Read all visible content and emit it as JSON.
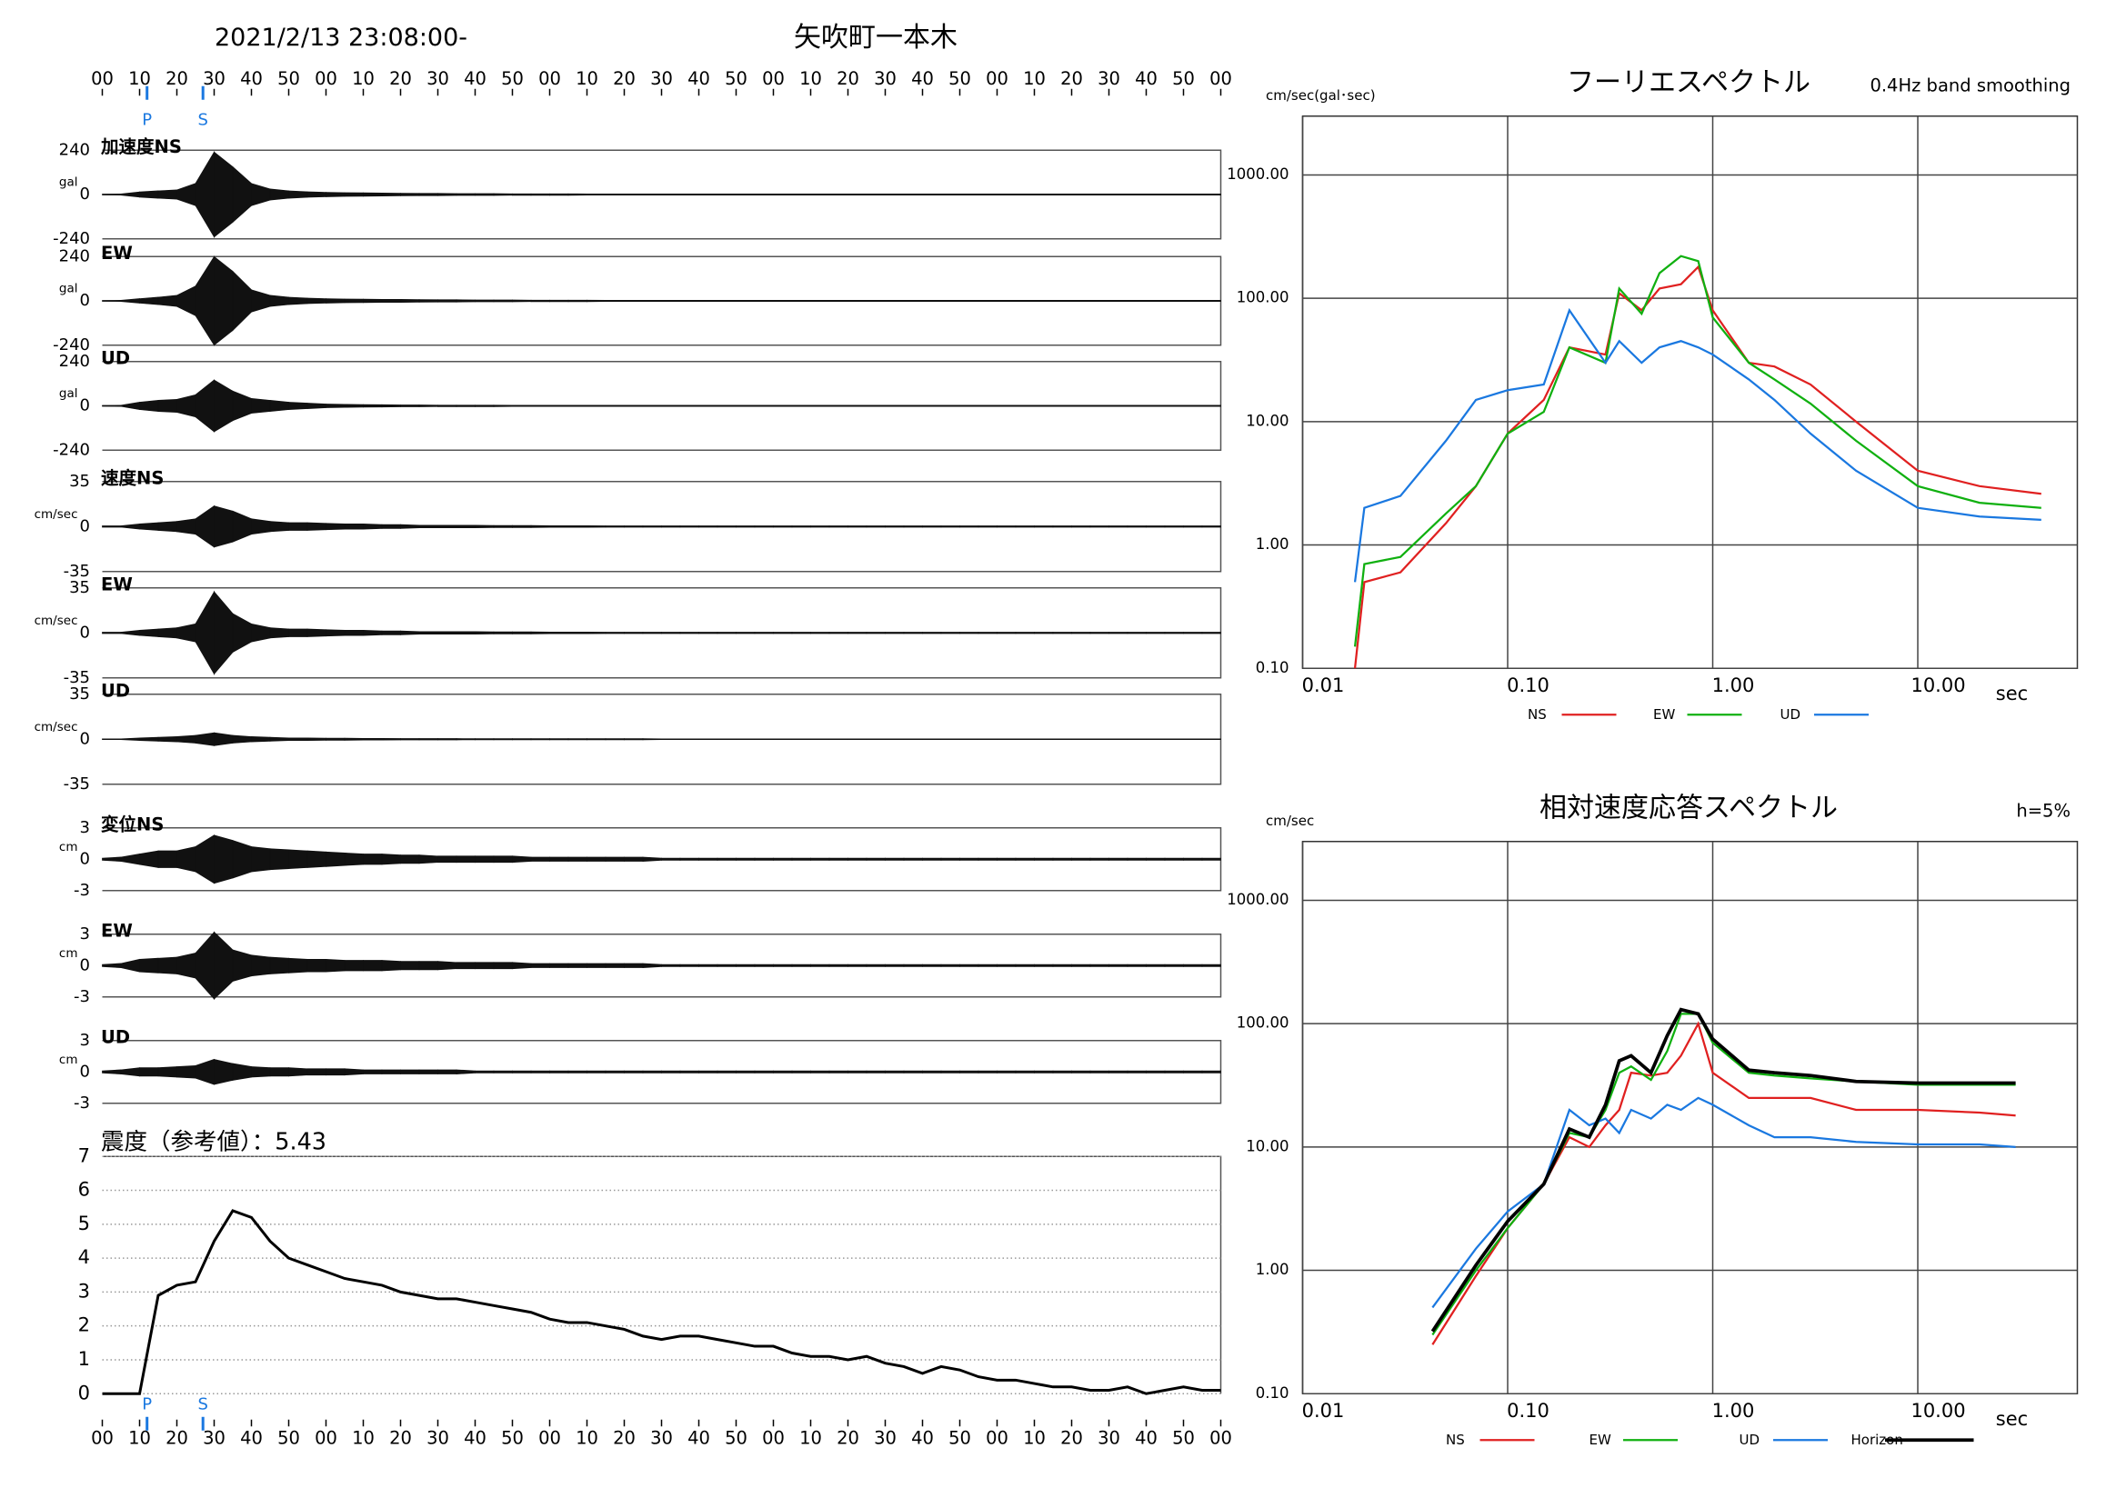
{
  "header": {
    "datetime": "2021/2/13 23:08:00-",
    "station": "矢吹町一本木"
  },
  "waveforms": {
    "xlim": [
      0,
      300
    ],
    "xticks": [
      {
        "value": 0,
        "label": "00"
      },
      {
        "value": 10,
        "label": "10"
      },
      {
        "value": 20,
        "label": "20"
      },
      {
        "value": 30,
        "label": "30"
      },
      {
        "value": 40,
        "label": "40"
      },
      {
        "value": 50,
        "label": "50"
      },
      {
        "value": 60,
        "label": "00"
      },
      {
        "value": 70,
        "label": "10"
      },
      {
        "value": 80,
        "label": "20"
      },
      {
        "value": 90,
        "label": "30"
      },
      {
        "value": 100,
        "label": "40"
      },
      {
        "value": 110,
        "label": "50"
      },
      {
        "value": 120,
        "label": "00"
      },
      {
        "value": 130,
        "label": "10"
      },
      {
        "value": 140,
        "label": "20"
      },
      {
        "value": 150,
        "label": "30"
      },
      {
        "value": 160,
        "label": "40"
      },
      {
        "value": 170,
        "label": "50"
      },
      {
        "value": 180,
        "label": "00"
      },
      {
        "value": 190,
        "label": "10"
      },
      {
        "value": 200,
        "label": "20"
      },
      {
        "value": 210,
        "label": "30"
      },
      {
        "value": 220,
        "label": "40"
      },
      {
        "value": 230,
        "label": "50"
      },
      {
        "value": 240,
        "label": "00"
      },
      {
        "value": 250,
        "label": "10"
      },
      {
        "value": 260,
        "label": "20"
      },
      {
        "value": 270,
        "label": "30"
      },
      {
        "value": 280,
        "label": "40"
      },
      {
        "value": 290,
        "label": "50"
      },
      {
        "value": 300,
        "label": "00"
      }
    ],
    "phases": [
      {
        "label": "P",
        "value": 12
      },
      {
        "label": "S",
        "value": 27
      }
    ],
    "x": [
      0,
      5,
      10,
      15,
      20,
      25,
      30,
      35,
      40,
      45,
      50,
      55,
      60,
      65,
      70,
      75,
      80,
      85,
      90,
      95,
      100,
      105,
      110,
      115,
      120,
      125,
      130,
      135,
      140,
      145,
      150,
      155,
      160,
      165,
      170,
      175,
      180,
      185,
      190,
      195,
      200,
      205,
      210,
      215,
      220,
      225,
      230,
      235,
      240,
      245,
      250,
      255,
      260,
      265,
      270,
      275,
      280,
      285,
      290,
      295,
      300
    ],
    "panels": [
      {
        "label": "加速度NS",
        "unit": "gal",
        "ylim": [
          -240,
          240
        ],
        "yticks": [
          240,
          0,
          -240
        ],
        "values": [
          2,
          3,
          14,
          20,
          25,
          60,
          230,
          150,
          60,
          30,
          20,
          15,
          12,
          10,
          9,
          8,
          7,
          6,
          6,
          5,
          5,
          5,
          4,
          4,
          4,
          4,
          3,
          3,
          3,
          3,
          3,
          3,
          3,
          3,
          3,
          3,
          3,
          3,
          3,
          3,
          3,
          3,
          3,
          3,
          3,
          3,
          3,
          3,
          3,
          3,
          3,
          3,
          3,
          3,
          3,
          3,
          3,
          3,
          3,
          3,
          3
        ]
      },
      {
        "label": "EW",
        "unit": "gal",
        "ylim": [
          -240,
          240
        ],
        "yticks": [
          240,
          0,
          -240
        ],
        "values": [
          2,
          3,
          12,
          20,
          30,
          80,
          240,
          160,
          60,
          30,
          20,
          15,
          12,
          10,
          9,
          8,
          8,
          7,
          6,
          6,
          5,
          5,
          5,
          4,
          4,
          4,
          4,
          3,
          3,
          3,
          3,
          3,
          3,
          3,
          3,
          3,
          3,
          3,
          3,
          3,
          3,
          3,
          3,
          3,
          3,
          3,
          3,
          3,
          3,
          3,
          3,
          3,
          3,
          3,
          3,
          3,
          3,
          3,
          3,
          3,
          3
        ]
      },
      {
        "label": "UD",
        "unit": "gal",
        "ylim": [
          -240,
          240
        ],
        "yticks": [
          240,
          0,
          -240
        ],
        "values": [
          2,
          3,
          20,
          30,
          35,
          60,
          140,
          80,
          40,
          30,
          20,
          15,
          10,
          8,
          7,
          6,
          5,
          5,
          4,
          4,
          4,
          4,
          3,
          3,
          3,
          3,
          3,
          3,
          3,
          3,
          3,
          3,
          3,
          3,
          3,
          3,
          3,
          3,
          3,
          3,
          3,
          3,
          3,
          3,
          3,
          3,
          3,
          3,
          3,
          3,
          3,
          3,
          3,
          3,
          3,
          3,
          3,
          3,
          3,
          3,
          3
        ]
      },
      {
        "label": "速度NS",
        "unit": "cm/sec",
        "ylim": [
          -35,
          35
        ],
        "yticks": [
          35,
          0,
          -35
        ],
        "values": [
          0.5,
          0.5,
          2,
          3,
          4,
          6,
          16,
          12,
          6,
          4,
          3,
          3,
          2.5,
          2,
          2,
          1.5,
          1.5,
          1,
          1,
          1,
          1,
          0.8,
          0.8,
          0.8,
          0.6,
          0.6,
          0.6,
          0.5,
          0.5,
          0.5,
          0.5,
          0.5,
          0.5,
          0.5,
          0.5,
          0.5,
          0.5,
          0.5,
          0.5,
          0.5,
          0.5,
          0.5,
          0.5,
          0.5,
          0.5,
          0.5,
          0.5,
          0.5,
          0.5,
          0.5,
          0.5,
          0.5,
          0.5,
          0.5,
          0.5,
          0.5,
          0.5,
          0.5,
          0.5,
          0.5,
          0.5
        ]
      },
      {
        "label": "EW",
        "unit": "cm/sec",
        "ylim": [
          -35,
          35
        ],
        "yticks": [
          35,
          0,
          -35
        ],
        "values": [
          0.5,
          0.5,
          2,
          3,
          4,
          7,
          32,
          15,
          7,
          4,
          3,
          3,
          2.5,
          2,
          2,
          1.5,
          1.5,
          1,
          1,
          1,
          1,
          0.8,
          0.8,
          0.8,
          0.6,
          0.6,
          0.6,
          0.5,
          0.5,
          0.5,
          0.5,
          0.5,
          0.5,
          0.5,
          0.5,
          0.5,
          0.5,
          0.5,
          0.5,
          0.5,
          0.5,
          0.5,
          0.5,
          0.5,
          0.5,
          0.5,
          0.5,
          0.5,
          0.5,
          0.5,
          0.5,
          0.5,
          0.5,
          0.5,
          0.5,
          0.5,
          0.5,
          0.5,
          0.5,
          0.5,
          0.5
        ]
      },
      {
        "label": "UD",
        "unit": "cm/sec",
        "ylim": [
          -35,
          35
        ],
        "yticks": [
          35,
          0,
          -35
        ],
        "values": [
          0.3,
          0.3,
          1,
          1.5,
          2,
          3,
          5,
          3,
          2,
          1.5,
          1,
          1,
          0.8,
          0.8,
          0.6,
          0.6,
          0.5,
          0.5,
          0.5,
          0.5,
          0.4,
          0.4,
          0.4,
          0.4,
          0.4,
          0.4,
          0.4,
          0.4,
          0.4,
          0.4,
          0.3,
          0.3,
          0.3,
          0.3,
          0.3,
          0.3,
          0.3,
          0.3,
          0.3,
          0.3,
          0.3,
          0.3,
          0.3,
          0.3,
          0.3,
          0.3,
          0.3,
          0.3,
          0.3,
          0.3,
          0.3,
          0.3,
          0.3,
          0.3,
          0.3,
          0.3,
          0.3,
          0.3,
          0.3,
          0.3,
          0.3
        ]
      },
      {
        "label": "変位NS",
        "unit": "cm",
        "ylim": [
          -3,
          3
        ],
        "yticks": [
          3,
          0,
          -3
        ],
        "values": [
          0.1,
          0.2,
          0.5,
          0.8,
          0.8,
          1.2,
          2.3,
          1.8,
          1.2,
          1.0,
          0.9,
          0.8,
          0.7,
          0.6,
          0.5,
          0.5,
          0.4,
          0.4,
          0.3,
          0.3,
          0.3,
          0.3,
          0.3,
          0.2,
          0.2,
          0.2,
          0.2,
          0.2,
          0.2,
          0.2,
          0.1,
          0.1,
          0.1,
          0.1,
          0.1,
          0.1,
          0.1,
          0.1,
          0.1,
          0.1,
          0.1,
          0.1,
          0.1,
          0.1,
          0.1,
          0.1,
          0.1,
          0.1,
          0.1,
          0.1,
          0.1,
          0.1,
          0.1,
          0.1,
          0.1,
          0.1,
          0.1,
          0.1,
          0.1,
          0.1,
          0.1
        ]
      },
      {
        "label": "EW",
        "unit": "cm",
        "ylim": [
          -3,
          3
        ],
        "yticks": [
          3,
          0,
          -3
        ],
        "values": [
          0.1,
          0.2,
          0.6,
          0.7,
          0.8,
          1.2,
          3.2,
          1.5,
          1.0,
          0.8,
          0.7,
          0.6,
          0.6,
          0.5,
          0.5,
          0.5,
          0.4,
          0.4,
          0.4,
          0.3,
          0.3,
          0.3,
          0.3,
          0.2,
          0.2,
          0.2,
          0.2,
          0.2,
          0.2,
          0.2,
          0.1,
          0.1,
          0.1,
          0.1,
          0.1,
          0.1,
          0.1,
          0.1,
          0.1,
          0.1,
          0.1,
          0.1,
          0.1,
          0.1,
          0.1,
          0.1,
          0.1,
          0.1,
          0.1,
          0.1,
          0.1,
          0.1,
          0.1,
          0.1,
          0.1,
          0.1,
          0.1,
          0.1,
          0.1,
          0.1,
          0.1
        ]
      },
      {
        "label": "UD",
        "unit": "cm",
        "ylim": [
          -3,
          3
        ],
        "yticks": [
          3,
          0,
          -3
        ],
        "values": [
          0.1,
          0.2,
          0.4,
          0.4,
          0.5,
          0.6,
          1.2,
          0.8,
          0.5,
          0.4,
          0.4,
          0.3,
          0.3,
          0.3,
          0.2,
          0.2,
          0.2,
          0.2,
          0.2,
          0.2,
          0.1,
          0.1,
          0.1,
          0.1,
          0.1,
          0.1,
          0.1,
          0.1,
          0.1,
          0.1,
          0.1,
          0.1,
          0.1,
          0.1,
          0.1,
          0.1,
          0.1,
          0.1,
          0.1,
          0.1,
          0.1,
          0.1,
          0.1,
          0.1,
          0.1,
          0.1,
          0.1,
          0.1,
          0.1,
          0.1,
          0.1,
          0.1,
          0.1,
          0.1,
          0.1,
          0.1,
          0.1,
          0.1,
          0.1,
          0.1,
          0.1
        ]
      }
    ]
  },
  "intensity": {
    "title": "震度（参考値）：5.43",
    "ylim": [
      0,
      7
    ],
    "yticks": [
      0,
      1,
      2,
      3,
      4,
      5,
      6,
      7
    ],
    "values": [
      0,
      0,
      0,
      2.9,
      3.2,
      3.3,
      4.5,
      5.4,
      5.2,
      4.5,
      4.0,
      3.8,
      3.6,
      3.4,
      3.3,
      3.2,
      3.0,
      2.9,
      2.8,
      2.8,
      2.7,
      2.6,
      2.5,
      2.4,
      2.2,
      2.1,
      2.1,
      2.0,
      1.9,
      1.7,
      1.6,
      1.7,
      1.7,
      1.6,
      1.5,
      1.4,
      1.4,
      1.2,
      1.1,
      1.1,
      1.0,
      1.1,
      0.9,
      0.8,
      0.6,
      0.8,
      0.7,
      0.5,
      0.4,
      0.4,
      0.3,
      0.2,
      0.2,
      0.1,
      0.1,
      0.2,
      0.0,
      0.1,
      0.2,
      0.1,
      0.1
    ]
  },
  "chart_data": [
    {
      "type": "line",
      "title": "フーリエスペクトル",
      "subtitle": "0.4Hz band smoothing",
      "y_label": "cm/sec(gal･sec)",
      "x_label": "sec",
      "log_x": true,
      "log_y": true,
      "grid": true,
      "xlim": [
        0.01,
        60
      ],
      "ylim": [
        0.1,
        3000
      ],
      "xticks": [
        {
          "value": 0.01,
          "label": "0.01"
        },
        {
          "value": 0.1,
          "label": "0.10"
        },
        {
          "value": 1,
          "label": "1.00"
        },
        {
          "value": 10,
          "label": "10.00"
        }
      ],
      "yticks": [
        {
          "value": 0.1,
          "label": "0.10"
        },
        {
          "value": 1,
          "label": "1.00"
        },
        {
          "value": 10,
          "label": "10.00"
        },
        {
          "value": 100,
          "label": "100.00"
        },
        {
          "value": 1000,
          "label": "1000.00"
        }
      ],
      "x": [
        0.018,
        0.02,
        0.03,
        0.05,
        0.07,
        0.1,
        0.15,
        0.2,
        0.3,
        0.35,
        0.45,
        0.55,
        0.7,
        0.85,
        1.0,
        1.5,
        2,
        3,
        5,
        10,
        20,
        40
      ],
      "series": [
        {
          "name": "NS",
          "color": "#e02020",
          "values": [
            0.1,
            0.5,
            0.6,
            1.5,
            3,
            8,
            15,
            40,
            35,
            110,
            80,
            120,
            130,
            180,
            80,
            30,
            28,
            20,
            10,
            4,
            3,
            2.6
          ]
        },
        {
          "name": "EW",
          "color": "#10b010",
          "values": [
            0.15,
            0.7,
            0.8,
            1.8,
            3,
            8,
            12,
            40,
            30,
            120,
            75,
            160,
            220,
            200,
            70,
            30,
            22,
            14,
            7,
            3,
            2.2,
            2
          ]
        },
        {
          "name": "UD",
          "color": "#1a78e0",
          "values": [
            0.5,
            2,
            2.5,
            7,
            15,
            18,
            20,
            80,
            30,
            45,
            30,
            40,
            45,
            40,
            35,
            22,
            15,
            8,
            4,
            2,
            1.7,
            1.6
          ]
        }
      ]
    },
    {
      "type": "line",
      "title": "相対速度応答スペクトル",
      "subtitle": "h=5%",
      "y_label": "cm/sec",
      "x_label": "sec",
      "log_x": true,
      "log_y": true,
      "grid": true,
      "xlim": [
        0.01,
        60
      ],
      "ylim": [
        0.1,
        3000
      ],
      "xticks": [
        {
          "value": 0.01,
          "label": "0.01"
        },
        {
          "value": 0.1,
          "label": "0.10"
        },
        {
          "value": 1,
          "label": "1.00"
        },
        {
          "value": 10,
          "label": "10.00"
        }
      ],
      "yticks": [
        {
          "value": 0.1,
          "label": "0.10"
        },
        {
          "value": 1,
          "label": "1.00"
        },
        {
          "value": 10,
          "label": "10.00"
        },
        {
          "value": 100,
          "label": "100.00"
        },
        {
          "value": 1000,
          "label": "1000.00"
        }
      ],
      "x": [
        0.043,
        0.07,
        0.1,
        0.15,
        0.2,
        0.25,
        0.3,
        0.35,
        0.4,
        0.5,
        0.6,
        0.7,
        0.85,
        1,
        1.5,
        2,
        3,
        5,
        10,
        20,
        30
      ],
      "series": [
        {
          "name": "NS",
          "color": "#e02020",
          "values": [
            0.25,
            0.9,
            2.2,
            5,
            12,
            10,
            15,
            20,
            40,
            38,
            40,
            55,
            100,
            40,
            25,
            25,
            25,
            20,
            20,
            19,
            18
          ]
        },
        {
          "name": "EW",
          "color": "#10b010",
          "values": [
            0.3,
            1,
            2.2,
            5,
            13,
            12,
            20,
            40,
            45,
            35,
            60,
            120,
            120,
            70,
            40,
            38,
            36,
            34,
            32,
            32,
            32
          ]
        },
        {
          "name": "UD",
          "color": "#1a78e0",
          "values": [
            0.5,
            1.5,
            3,
            5,
            20,
            15,
            17,
            13,
            20,
            17,
            22,
            20,
            25,
            22,
            15,
            12,
            12,
            11,
            10.5,
            10.5,
            10
          ]
        },
        {
          "name": "Horizon",
          "color": "#000000",
          "values": [
            0.32,
            1.1,
            2.5,
            5,
            14,
            12,
            22,
            50,
            55,
            40,
            80,
            130,
            120,
            75,
            42,
            40,
            38,
            34,
            33,
            33,
            33
          ]
        }
      ]
    }
  ]
}
